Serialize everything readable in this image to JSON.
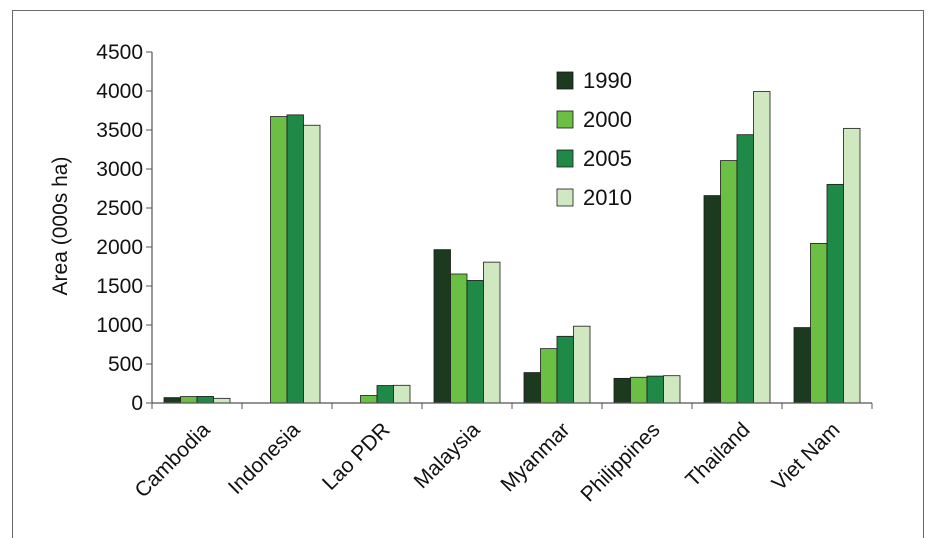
{
  "chart_data": {
    "type": "bar",
    "ylabel": "Area (000s ha)",
    "xlabel": "",
    "ylim": [
      0,
      4500
    ],
    "yticks": [
      0,
      500,
      1000,
      1500,
      2000,
      2500,
      3000,
      3500,
      4000,
      4500
    ],
    "categories": [
      "Cambodia",
      "Indonesia",
      "Lao PDR",
      "Malaysia",
      "Myanmar",
      "Philippines",
      "Thailand",
      "Viet Nam"
    ],
    "series": [
      {
        "name": "1990",
        "color": "#1b3a1e",
        "values": [
          69,
          0,
          0,
          1966,
          390,
          316,
          2659,
          967
        ]
      },
      {
        "name": "2000",
        "color": "#6bbf45",
        "values": [
          82,
          3672,
          96,
          1654,
          697,
          330,
          3108,
          2046
        ]
      },
      {
        "name": "2005",
        "color": "#1f8a47",
        "values": [
          84,
          3694,
          224,
          1571,
          855,
          345,
          3440,
          2803
        ]
      },
      {
        "name": "2010",
        "color": "#cfe8c0",
        "values": [
          60,
          3561,
          227,
          1806,
          985,
          350,
          3993,
          3521
        ]
      }
    ],
    "legend_position": "top-center",
    "grid": false
  }
}
